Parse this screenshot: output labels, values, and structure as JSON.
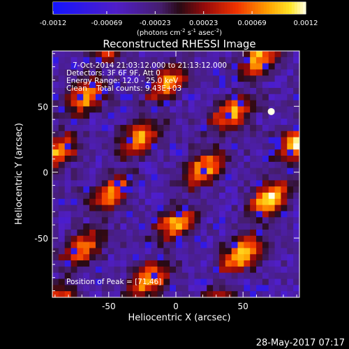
{
  "chart_data": {
    "type": "heatmap",
    "title": "Reconstructed RHESSI Image",
    "xlabel": "Heliocentric X (arcsec)",
    "ylabel": "Heliocentric Y (arcsec)",
    "xlim": [
      -92,
      92
    ],
    "ylim": [
      -95,
      92
    ],
    "xticks": [
      "-50",
      "0",
      "50"
    ],
    "xtick_values": [
      -50,
      0,
      50
    ],
    "yticks": [
      "50",
      "0",
      "-50"
    ],
    "ytick_values": [
      50,
      0,
      -50
    ],
    "colormap": "hot on blue-violet diverging",
    "colorbar": {
      "min": -0.0012,
      "max": 0.0012,
      "tick_labels": [
        "-0.0012",
        "-0.00069",
        "-0.00023",
        "0.00023",
        "0.00069",
        "0.0012"
      ],
      "tick_values": [
        -0.0012,
        -0.00069,
        -0.00023,
        0.00023,
        0.00069,
        0.0012
      ],
      "units": "(photons cm",
      "units_sup1": "-2",
      "units_mid": " s",
      "units_sup2": "-1",
      "units_mid2": " asec",
      "units_sup3": "-2",
      "units_end": ")"
    },
    "annotations": {
      "time_range": "7-Oct-2014 21:03:12.000 to 21:13:12.000",
      "detectors": "Detectors: 3F 6F 9F, Att 0",
      "energy": "Energy Range: 12.0 - 25.0 keV",
      "clean": "Clean    Total counts: 9.43E+03",
      "peak": "Position of Peak = [71,46]"
    },
    "peak_position": [
      71,
      46
    ],
    "stripes": [
      {
        "x0": -95,
        "slope": 0.9,
        "amp": 1.0
      },
      {
        "x0": -40,
        "slope": 0.9,
        "amp": 0.95
      },
      {
        "x0": 20,
        "slope": 0.9,
        "amp": 1.05
      },
      {
        "x0": 80,
        "slope": 0.9,
        "amp": 1.2
      }
    ],
    "grid": false
  },
  "footer": {
    "timestamp": "28-May-2017 07:17"
  },
  "colors": {
    "background": "#000000",
    "foreground": "#ffffff"
  }
}
